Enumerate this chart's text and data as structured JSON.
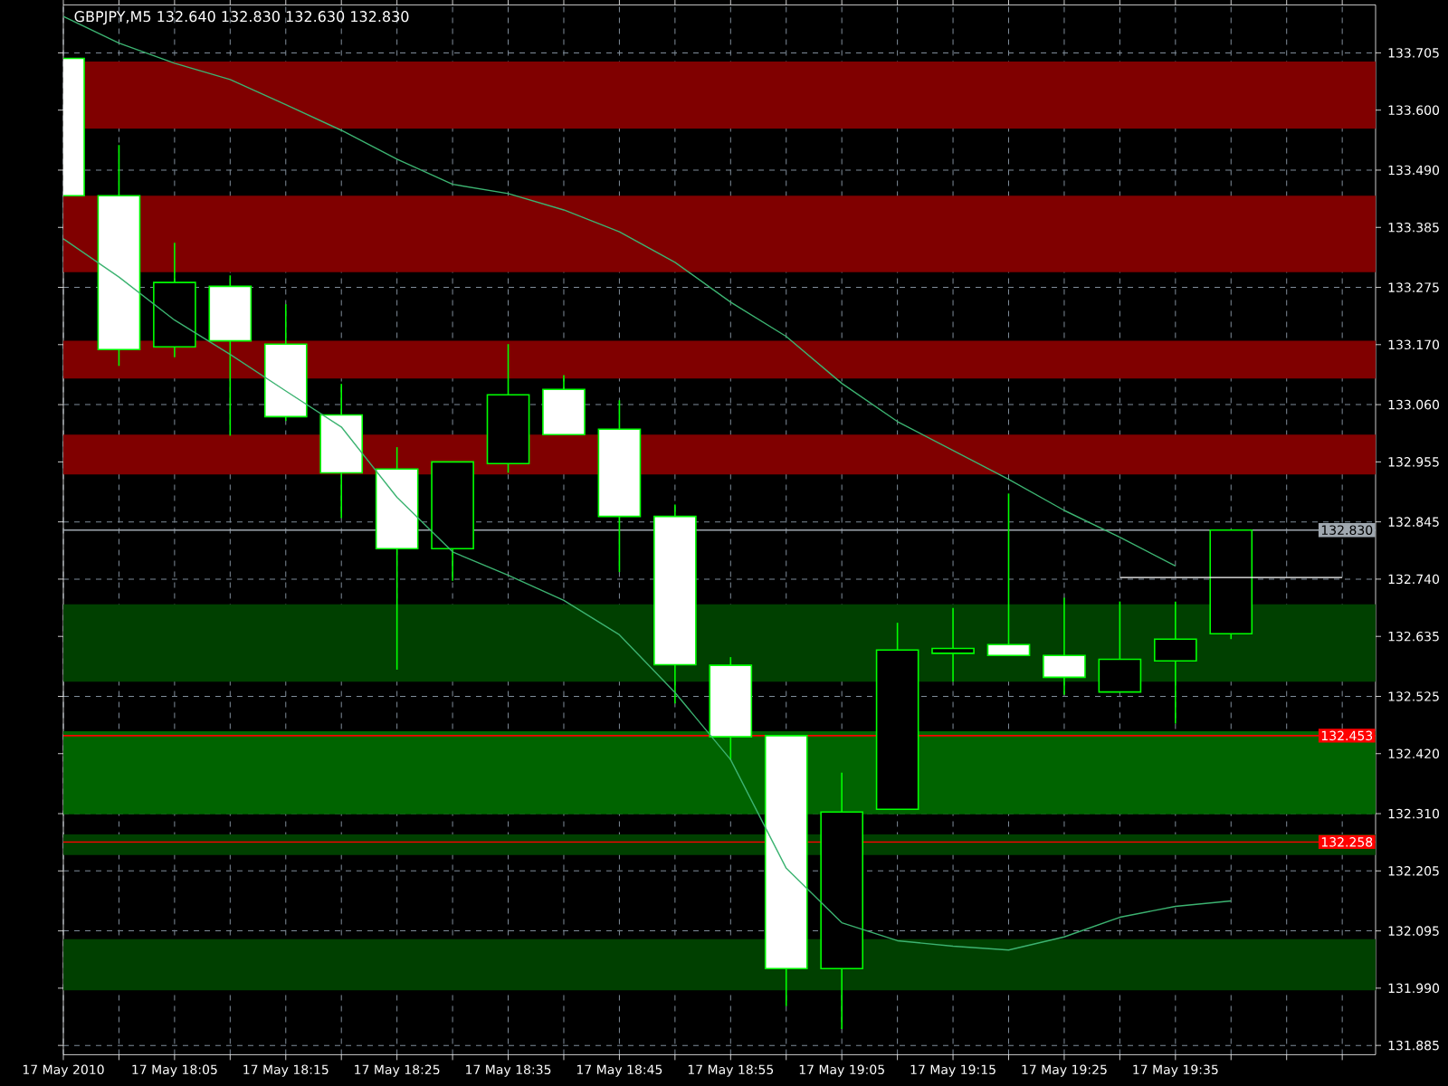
{
  "chart_data": {
    "type": "candlestick",
    "title": "GBPJPY,M5 132.640 132.830 132.630 132.830",
    "x": [
      "2010-05-17T17:55",
      "2010-05-17T18:00",
      "2010-05-17T18:05",
      "2010-05-17T18:10",
      "2010-05-17T18:15",
      "2010-05-17T18:20",
      "2010-05-17T18:25",
      "2010-05-17T18:30",
      "2010-05-17T18:35",
      "2010-05-17T18:40",
      "2010-05-17T18:45",
      "2010-05-17T18:50",
      "2010-05-17T18:55",
      "2010-05-17T19:00",
      "2010-05-17T19:05",
      "2010-05-17T19:10",
      "2010-05-17T19:15",
      "2010-05-17T19:20",
      "2010-05-17T19:25",
      "2010-05-17T19:30",
      "2010-05-17T19:35",
      "2010-05-17T19:40"
    ],
    "ohlc": [
      [
        133.695,
        133.695,
        133.443,
        133.443
      ],
      [
        133.443,
        133.536,
        133.131,
        133.161
      ],
      [
        133.166,
        133.357,
        133.147,
        133.284
      ],
      [
        133.277,
        133.297,
        133.003,
        133.177
      ],
      [
        133.171,
        133.244,
        133.03,
        133.038
      ],
      [
        133.041,
        133.098,
        132.852,
        132.935
      ],
      [
        132.942,
        132.982,
        132.574,
        132.796
      ],
      [
        132.796,
        132.955,
        132.737,
        132.955
      ],
      [
        132.952,
        133.171,
        132.935,
        133.078
      ],
      [
        133.088,
        133.114,
        133.005,
        133.005
      ],
      [
        133.015,
        133.068,
        132.753,
        132.855
      ],
      [
        132.855,
        132.877,
        132.512,
        132.583
      ],
      [
        132.582,
        132.597,
        132.408,
        132.451
      ],
      [
        132.453,
        132.453,
        131.957,
        132.026
      ],
      [
        132.026,
        132.385,
        131.915,
        132.313
      ],
      [
        132.318,
        132.66,
        132.318,
        132.61
      ],
      [
        132.604,
        132.687,
        132.552,
        132.613
      ],
      [
        132.62,
        132.897,
        132.6,
        132.6
      ],
      [
        132.6,
        132.706,
        132.528,
        132.56
      ],
      [
        132.533,
        132.699,
        132.533,
        132.593
      ],
      [
        132.59,
        132.699,
        132.475,
        132.63
      ],
      [
        132.64,
        132.83,
        132.63,
        132.83
      ]
    ],
    "color": "#00ff00",
    "colors": [
      "#ffffff",
      "#ffffff",
      "#000000",
      "#ffffff",
      "#ffffff",
      "#ffffff",
      "#ffffff",
      "#000000",
      "#000000",
      "#ffffff",
      "#ffffff",
      "#ffffff",
      "#ffffff",
      "#ffffff",
      "#000000",
      "#000000",
      "#000000",
      "#ffffff",
      "#ffffff",
      "#000000",
      "#000000",
      "#000000"
    ],
    "series": [
      {
        "type": "line",
        "color": "#3cb371",
        "values": [
          133.772,
          133.723,
          133.686,
          133.656,
          133.61,
          133.563,
          133.51,
          133.464,
          133.447,
          133.417,
          133.377,
          133.321,
          133.248,
          133.185,
          133.099,
          133.029,
          132.976,
          132.923,
          132.866,
          132.817,
          132.764,
          null
        ]
      },
      {
        "type": "line",
        "color": "#3cb371",
        "values": [
          133.364,
          133.294,
          133.215,
          133.152,
          133.085,
          133.019,
          132.89,
          132.79,
          132.747,
          132.701,
          132.638,
          132.532,
          132.409,
          132.21,
          132.11,
          132.077,
          132.067,
          132.06,
          132.084,
          132.12,
          132.14,
          132.15
        ]
      },
      {
        "type": "line",
        "color": "#ffffff",
        "x": [
          "2010-05-17T19:30",
          "2010-05-17T19:50"
        ],
        "values": [
          132.743,
          132.743
        ]
      }
    ],
    "xlim": [
      "2010-05-17T17:55",
      "2010-05-17T19:53"
    ],
    "ylim": [
      131.868,
      133.793
    ],
    "xticks": [
      {
        "value": "2010-05-17T17:55",
        "label": "17 May 2010"
      },
      {
        "value": "2010-05-17T18:00",
        "label": null
      },
      {
        "value": "2010-05-17T18:05",
        "label": "17 May 18:05"
      },
      {
        "value": "2010-05-17T18:10",
        "label": null
      },
      {
        "value": "2010-05-17T18:15",
        "label": "17 May 18:15"
      },
      {
        "value": "2010-05-17T18:20",
        "label": null
      },
      {
        "value": "2010-05-17T18:25",
        "label": "17 May 18:25"
      },
      {
        "value": "2010-05-17T18:30",
        "label": null
      },
      {
        "value": "2010-05-17T18:35",
        "label": "17 May 18:35"
      },
      {
        "value": "2010-05-17T18:40",
        "label": null
      },
      {
        "value": "2010-05-17T18:45",
        "label": "17 May 18:45"
      },
      {
        "value": "2010-05-17T18:50",
        "label": null
      },
      {
        "value": "2010-05-17T18:55",
        "label": "17 May 18:55"
      },
      {
        "value": "2010-05-17T19:00",
        "label": null
      },
      {
        "value": "2010-05-17T19:05",
        "label": "17 May 19:05"
      },
      {
        "value": "2010-05-17T19:10",
        "label": null
      },
      {
        "value": "2010-05-17T19:15",
        "label": "17 May 19:15"
      },
      {
        "value": "2010-05-17T19:20",
        "label": null
      },
      {
        "value": "2010-05-17T19:25",
        "label": "17 May 19:25"
      },
      {
        "value": "2010-05-17T19:30",
        "label": null
      },
      {
        "value": "2010-05-17T19:35",
        "label": "17 May 19:35"
      },
      {
        "value": "2010-05-17T19:40",
        "label": null
      },
      {
        "value": "2010-05-17T19:45",
        "label": null
      },
      {
        "value": "2010-05-17T19:50",
        "label": null
      }
    ],
    "yticks": [
      {
        "value": 131.885,
        "label": "131.885"
      },
      {
        "value": 131.99,
        "label": "131.990"
      },
      {
        "value": 132.095,
        "label": "132.095"
      },
      {
        "value": 132.205,
        "label": "132.205"
      },
      {
        "value": 132.31,
        "label": "132.310"
      },
      {
        "value": 132.42,
        "label": "132.420"
      },
      {
        "value": 132.525,
        "label": "132.525"
      },
      {
        "value": 132.635,
        "label": "132.635"
      },
      {
        "value": 132.74,
        "label": "132.740"
      },
      {
        "value": 132.845,
        "label": "132.845"
      },
      {
        "value": 132.955,
        "label": "132.955"
      },
      {
        "value": 133.06,
        "label": "133.060"
      },
      {
        "value": 133.17,
        "label": "133.170"
      },
      {
        "value": 133.275,
        "label": "133.275"
      },
      {
        "value": 133.385,
        "label": "133.385"
      },
      {
        "value": 133.49,
        "label": "133.490"
      },
      {
        "value": 133.6,
        "label": "133.600"
      },
      {
        "value": 133.705,
        "label": "133.705"
      }
    ],
    "bands": [
      {
        "axis": "y",
        "from": 133.566,
        "to": 133.689,
        "color": "#800000"
      },
      {
        "axis": "y",
        "from": 133.303,
        "to": 133.443,
        "color": "#800000"
      },
      {
        "axis": "y",
        "from": 133.108,
        "to": 133.177,
        "color": "#800000"
      },
      {
        "axis": "y",
        "from": 132.932,
        "to": 133.005,
        "color": "#800000"
      },
      {
        "axis": "y",
        "from": 132.552,
        "to": 132.694,
        "color": "#004000"
      },
      {
        "axis": "y",
        "from": 132.309,
        "to": 132.461,
        "color": "#006400"
      },
      {
        "axis": "y",
        "from": 132.234,
        "to": 132.272,
        "color": "#004000"
      },
      {
        "axis": "y",
        "from": 131.986,
        "to": 132.08,
        "color": "#004000"
      }
    ],
    "ref_lines": [
      {
        "axis": "y",
        "value": 132.83,
        "label": "132.830",
        "color": "#a0a8b0"
      },
      {
        "axis": "y",
        "value": 132.453,
        "label": "132.453",
        "color": "#ff0000"
      },
      {
        "axis": "y",
        "value": 132.258,
        "label": "132.258",
        "color": "#ff0000"
      }
    ],
    "grid": true,
    "marker": "none"
  }
}
